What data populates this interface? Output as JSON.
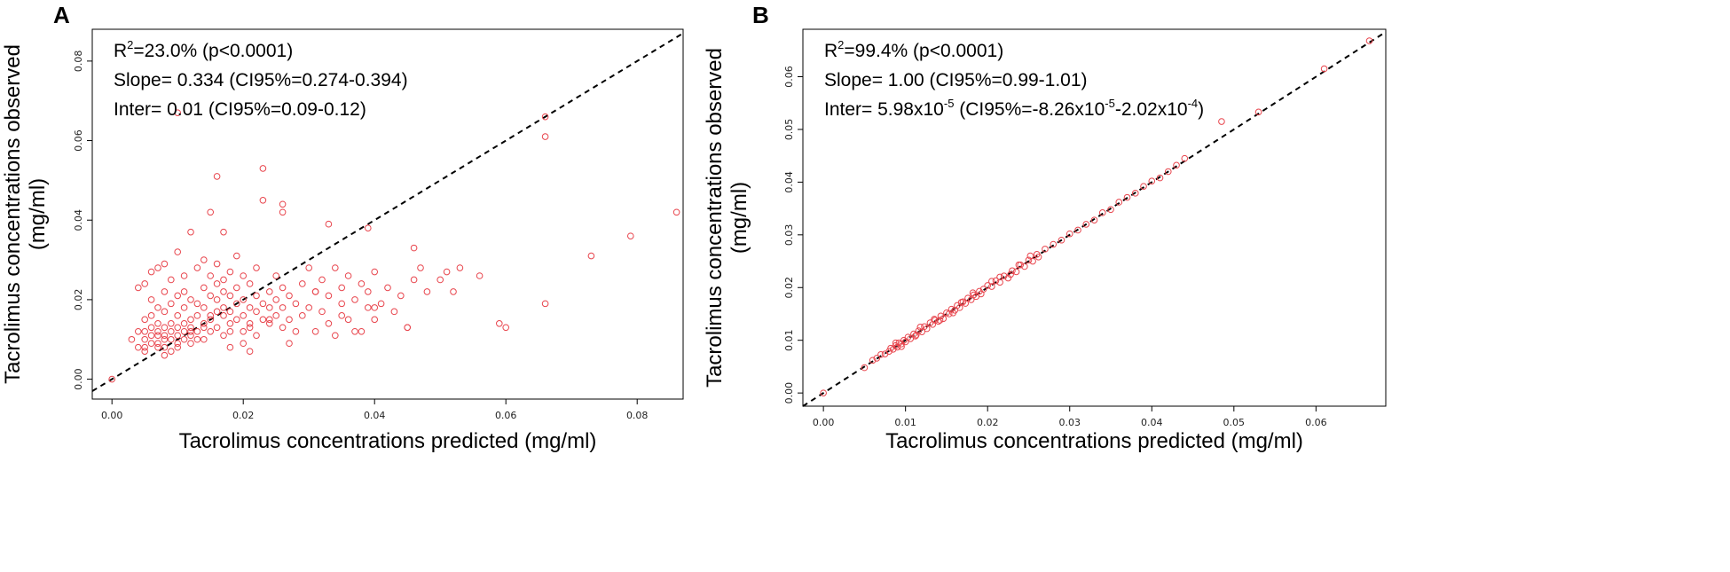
{
  "chart_data": [
    {
      "panel": "A",
      "type": "scatter",
      "xlabel": "Tacrolimus concentrations predicted (mg/ml)",
      "ylabel_line1": "Tacrolimus concentrations observed",
      "ylabel_line2": "(mg/ml)",
      "xlim": [
        -0.003,
        0.087
      ],
      "ylim": [
        -0.005,
        0.088
      ],
      "xticks": [
        0.0,
        0.02,
        0.04,
        0.06,
        0.08
      ],
      "xtick_labels": [
        "0.00",
        "0.02",
        "0.04",
        "0.06",
        "0.08"
      ],
      "yticks": [
        0.0,
        0.02,
        0.04,
        0.06,
        0.08
      ],
      "ytick_labels": [
        "0.00",
        "0.02",
        "0.04",
        "0.06",
        "0.08"
      ],
      "identity_line": true,
      "annotations": [
        {
          "prefix": "R",
          "sup": "2",
          "rest": "=23.0% (p<0.0001)"
        },
        {
          "text": "Slope= 0.334 (CI95%=0.274-0.394)"
        },
        {
          "text": "Inter= 0.01 (CI95%=0.09-0.12)"
        }
      ],
      "x": [
        0.0,
        0.003,
        0.004,
        0.004,
        0.004,
        0.005,
        0.005,
        0.005,
        0.005,
        0.005,
        0.005,
        0.006,
        0.006,
        0.006,
        0.006,
        0.006,
        0.007,
        0.007,
        0.007,
        0.007,
        0.007,
        0.007,
        0.007,
        0.008,
        0.008,
        0.008,
        0.008,
        0.008,
        0.008,
        0.008,
        0.009,
        0.009,
        0.009,
        0.009,
        0.009,
        0.009,
        0.01,
        0.01,
        0.01,
        0.01,
        0.01,
        0.01,
        0.01,
        0.011,
        0.011,
        0.011,
        0.011,
        0.011,
        0.011,
        0.012,
        0.012,
        0.012,
        0.012,
        0.012,
        0.012,
        0.013,
        0.013,
        0.013,
        0.013,
        0.013,
        0.014,
        0.014,
        0.014,
        0.014,
        0.014,
        0.014,
        0.015,
        0.015,
        0.015,
        0.015,
        0.015,
        0.016,
        0.016,
        0.016,
        0.016,
        0.016,
        0.016,
        0.017,
        0.017,
        0.017,
        0.017,
        0.017,
        0.018,
        0.018,
        0.018,
        0.018,
        0.018,
        0.019,
        0.019,
        0.019,
        0.019,
        0.02,
        0.02,
        0.02,
        0.02,
        0.02,
        0.021,
        0.021,
        0.021,
        0.021,
        0.022,
        0.022,
        0.022,
        0.022,
        0.023,
        0.023,
        0.023,
        0.024,
        0.024,
        0.024,
        0.025,
        0.025,
        0.025,
        0.026,
        0.026,
        0.026,
        0.026,
        0.027,
        0.027,
        0.028,
        0.028,
        0.029,
        0.029,
        0.03,
        0.03,
        0.031,
        0.031,
        0.032,
        0.032,
        0.033,
        0.033,
        0.034,
        0.034,
        0.035,
        0.035,
        0.036,
        0.036,
        0.037,
        0.038,
        0.038,
        0.039,
        0.039,
        0.04,
        0.04,
        0.041,
        0.042,
        0.043,
        0.044,
        0.045,
        0.046,
        0.046,
        0.047,
        0.048,
        0.05,
        0.051,
        0.052,
        0.053,
        0.056,
        0.059,
        0.06,
        0.066,
        0.066,
        0.066,
        0.073,
        0.079,
        0.086,
        0.01,
        0.017,
        0.023,
        0.015,
        0.026,
        0.033,
        0.039,
        0.006,
        0.008,
        0.012,
        0.018,
        0.021,
        0.024,
        0.027,
        0.031,
        0.035,
        0.037,
        0.04,
        0.045
      ],
      "y": [
        0.0,
        0.01,
        0.008,
        0.023,
        0.012,
        0.008,
        0.01,
        0.015,
        0.024,
        0.007,
        0.012,
        0.009,
        0.013,
        0.02,
        0.027,
        0.016,
        0.008,
        0.011,
        0.014,
        0.018,
        0.028,
        0.009,
        0.012,
        0.01,
        0.013,
        0.017,
        0.029,
        0.022,
        0.011,
        0.008,
        0.012,
        0.014,
        0.019,
        0.025,
        0.007,
        0.01,
        0.008,
        0.011,
        0.016,
        0.021,
        0.032,
        0.013,
        0.009,
        0.01,
        0.014,
        0.018,
        0.022,
        0.012,
        0.026,
        0.009,
        0.013,
        0.015,
        0.02,
        0.037,
        0.011,
        0.01,
        0.016,
        0.019,
        0.028,
        0.012,
        0.014,
        0.018,
        0.023,
        0.03,
        0.01,
        0.013,
        0.016,
        0.021,
        0.026,
        0.012,
        0.015,
        0.017,
        0.02,
        0.024,
        0.029,
        0.013,
        0.051,
        0.016,
        0.018,
        0.022,
        0.025,
        0.011,
        0.014,
        0.017,
        0.021,
        0.027,
        0.012,
        0.015,
        0.019,
        0.023,
        0.031,
        0.012,
        0.016,
        0.02,
        0.026,
        0.009,
        0.014,
        0.018,
        0.024,
        0.013,
        0.017,
        0.021,
        0.028,
        0.011,
        0.015,
        0.019,
        0.053,
        0.014,
        0.018,
        0.022,
        0.016,
        0.02,
        0.026,
        0.013,
        0.018,
        0.023,
        0.044,
        0.015,
        0.021,
        0.012,
        0.019,
        0.016,
        0.024,
        0.018,
        0.028,
        0.012,
        0.022,
        0.017,
        0.025,
        0.014,
        0.021,
        0.011,
        0.028,
        0.019,
        0.023,
        0.015,
        0.026,
        0.02,
        0.012,
        0.024,
        0.018,
        0.022,
        0.015,
        0.027,
        0.019,
        0.023,
        0.017,
        0.021,
        0.013,
        0.025,
        0.033,
        0.028,
        0.022,
        0.025,
        0.027,
        0.022,
        0.028,
        0.026,
        0.014,
        0.013,
        0.066,
        0.061,
        0.019,
        0.031,
        0.036,
        0.042,
        0.067,
        0.037,
        0.045,
        0.042,
        0.042,
        0.039,
        0.038,
        0.011,
        0.006,
        0.012,
        0.008,
        0.007,
        0.015,
        0.009,
        0.022,
        0.016,
        0.012,
        0.018,
        0.013
      ],
      "point_color": "#e8454d"
    },
    {
      "panel": "B",
      "type": "scatter",
      "xlabel": "Tacrolimus concentrations predicted (mg/ml)",
      "ylabel_line1": "Tacrolimus concentrations observed",
      "ylabel_line2": "(mg/ml)",
      "xlim": [
        -0.0025,
        0.0685
      ],
      "ylim": [
        -0.0025,
        0.069
      ],
      "xticks": [
        0.0,
        0.01,
        0.02,
        0.03,
        0.04,
        0.05,
        0.06
      ],
      "xtick_labels": [
        "0.00",
        "0.01",
        "0.02",
        "0.03",
        "0.04",
        "0.05",
        "0.06"
      ],
      "yticks": [
        0.0,
        0.01,
        0.02,
        0.03,
        0.04,
        0.05,
        0.06
      ],
      "ytick_labels": [
        "0.00",
        "0.01",
        "0.02",
        "0.03",
        "0.04",
        "0.05",
        "0.06"
      ],
      "identity_line": true,
      "annotations": [
        {
          "prefix": "R",
          "sup": "2",
          "rest": "=99.4% (p<0.0001)"
        },
        {
          "text": "Slope= 1.00 (CI95%=0.99-1.01)"
        },
        {
          "parts": [
            {
              "t": "Inter= 5.98x10"
            },
            {
              "sup": "-5"
            },
            {
              "t": " (CI95%=-8.26x10"
            },
            {
              "sup": "-5"
            },
            {
              "t": "-2.02x10"
            },
            {
              "sup": "-4"
            },
            {
              "t": ")"
            }
          ]
        }
      ],
      "x": [
        0.0,
        0.005,
        0.006,
        0.0065,
        0.007,
        0.0075,
        0.008,
        0.0082,
        0.0085,
        0.0088,
        0.009,
        0.0092,
        0.0095,
        0.0098,
        0.01,
        0.0103,
        0.0106,
        0.011,
        0.0113,
        0.0116,
        0.012,
        0.0123,
        0.0126,
        0.013,
        0.0133,
        0.0136,
        0.014,
        0.0143,
        0.0146,
        0.015,
        0.0153,
        0.0156,
        0.016,
        0.0163,
        0.0166,
        0.017,
        0.0173,
        0.0176,
        0.018,
        0.0183,
        0.0186,
        0.019,
        0.0195,
        0.02,
        0.0205,
        0.021,
        0.0215,
        0.022,
        0.0225,
        0.023,
        0.0235,
        0.024,
        0.0245,
        0.025,
        0.0255,
        0.026,
        0.027,
        0.028,
        0.029,
        0.03,
        0.031,
        0.032,
        0.033,
        0.034,
        0.035,
        0.036,
        0.037,
        0.038,
        0.039,
        0.04,
        0.041,
        0.042,
        0.043,
        0.044,
        0.0485,
        0.053,
        0.061,
        0.0665,
        0.0088,
        0.0112,
        0.0135,
        0.0158,
        0.0182,
        0.0205,
        0.0228,
        0.0252,
        0.0095,
        0.0118,
        0.0142,
        0.0168,
        0.0192,
        0.0215,
        0.0238,
        0.0262
      ],
      "y": [
        0.0,
        0.0048,
        0.0062,
        0.0066,
        0.0073,
        0.0074,
        0.0079,
        0.0085,
        0.0083,
        0.009,
        0.0087,
        0.0095,
        0.0093,
        0.01,
        0.0097,
        0.0106,
        0.0103,
        0.0112,
        0.011,
        0.0118,
        0.0116,
        0.0126,
        0.0122,
        0.0133,
        0.013,
        0.0138,
        0.0136,
        0.0146,
        0.0141,
        0.0152,
        0.015,
        0.0159,
        0.0157,
        0.0166,
        0.0162,
        0.0173,
        0.017,
        0.018,
        0.0177,
        0.0186,
        0.0183,
        0.0193,
        0.0197,
        0.0204,
        0.0202,
        0.0213,
        0.021,
        0.0222,
        0.0218,
        0.0232,
        0.023,
        0.0243,
        0.024,
        0.0252,
        0.025,
        0.0263,
        0.0273,
        0.0282,
        0.029,
        0.0302,
        0.0309,
        0.032,
        0.0328,
        0.0342,
        0.0348,
        0.0362,
        0.0371,
        0.0379,
        0.0392,
        0.0402,
        0.0408,
        0.042,
        0.0432,
        0.0445,
        0.0515,
        0.0533,
        0.0615,
        0.0668,
        0.0095,
        0.0108,
        0.014,
        0.0152,
        0.019,
        0.0212,
        0.0225,
        0.026,
        0.0088,
        0.0125,
        0.0138,
        0.0172,
        0.0188,
        0.022,
        0.0243,
        0.0258
      ],
      "point_color": "#e8454d"
    }
  ],
  "panels": {
    "a": {
      "letter": "A"
    },
    "b": {
      "letter": "B"
    }
  }
}
